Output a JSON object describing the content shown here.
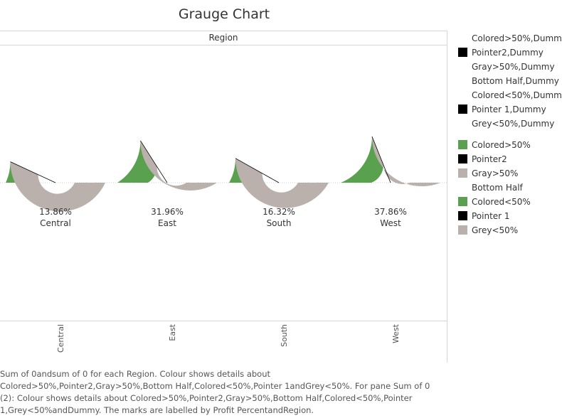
{
  "title": "Grauge Chart",
  "column_header": "Region",
  "colors": {
    "colored": "#59a14f",
    "gray": "#bab0ac",
    "pointer": "#000000"
  },
  "chart_data": {
    "type": "pie",
    "subtype": "gauge (half-donut)",
    "categories": [
      "Central",
      "East",
      "South",
      "West"
    ],
    "series": [
      {
        "name": "Profit Percent",
        "values": [
          13.86,
          31.96,
          16.32,
          37.86
        ]
      }
    ],
    "data_labels": [
      "13.86%",
      "31.96%",
      "16.32%",
      "37.86%"
    ],
    "x_axis_labels": [
      "Central",
      "East",
      "South",
      "West"
    ]
  },
  "legend": {
    "group1": [
      {
        "label": "Colored>50%,Dummy",
        "swatch": ""
      },
      {
        "label": "Pointer2,Dummy",
        "swatch": "#000000"
      },
      {
        "label": "Gray>50%,Dummy",
        "swatch": ""
      },
      {
        "label": "Bottom Half,Dummy",
        "swatch": ""
      },
      {
        "label": "Colored<50%,Dummy",
        "swatch": ""
      },
      {
        "label": "Pointer 1,Dummy",
        "swatch": "#000000"
      },
      {
        "label": "Grey<50%,Dummy",
        "swatch": ""
      }
    ],
    "group2": [
      {
        "label": "Colored>50%",
        "swatch": "#59a14f"
      },
      {
        "label": "Pointer2",
        "swatch": "#000000"
      },
      {
        "label": "Gray>50%",
        "swatch": "#bab0ac"
      },
      {
        "label": "Bottom Half",
        "swatch": ""
      },
      {
        "label": "Colored<50%",
        "swatch": "#59a14f"
      },
      {
        "label": "Pointer 1",
        "swatch": "#000000"
      },
      {
        "label": "Grey<50%",
        "swatch": "#bab0ac"
      }
    ]
  },
  "caption": "Sum of 0andsum of 0 for each Region. Colour shows details about Colored>50%,Pointer2,Gray>50%,Bottom Half,Colored<50%,Pointer 1andGrey<50%. For pane Sum of 0 (2): Colour shows details about Colored>50%,Pointer2,Gray>50%,Bottom Half,Colored<50%,Pointer 1,Grey<50%andDummy. The marks are labelled by Profit PercentandRegion."
}
